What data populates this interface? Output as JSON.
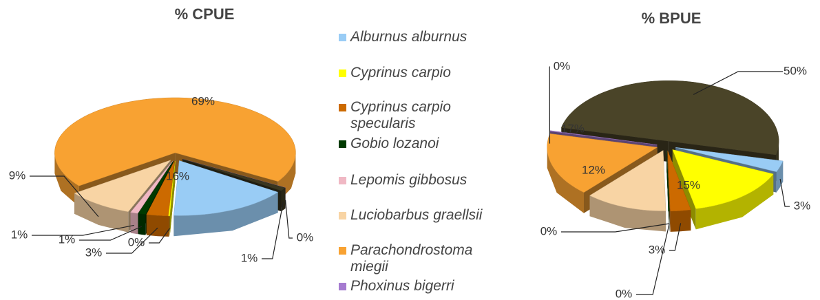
{
  "chart_data": [
    {
      "type": "pie3d",
      "title": "% CPUE",
      "categories": [
        "Alburnus alburnus",
        "Cyprinus carpio",
        "Cyprinus carpio specularis",
        "Gobio lozanoi",
        "Lepomis gibbosus",
        "Luciobarbus graellsii",
        "Parachondrostoma miegii",
        "Phoxinus bigerri",
        null
      ],
      "colors": [
        "#99ccf5",
        "#ffff00",
        "#cc6a00",
        "#003a00",
        "#f0b8c4",
        "#f8d4a4",
        "#f8a232",
        "#a57bd0",
        "#3a3620"
      ],
      "values": [
        16,
        0,
        3,
        1,
        1,
        9,
        69,
        0,
        1
      ],
      "value_labels": [
        "16%",
        "0%",
        "3%",
        "1%",
        "1%",
        "9%",
        "69%",
        "0%",
        "1%"
      ]
    },
    {
      "type": "pie3d",
      "title": "% BPUE",
      "categories": [
        "Alburnus alburnus",
        "Cyprinus carpio",
        "Cyprinus carpio specularis",
        "Gobio lozanoi",
        "Lepomis gibbosus",
        "Luciobarbus graellsii",
        "Parachondrostoma miegii",
        "Phoxinus bigerri",
        null
      ],
      "colors": [
        "#99ccf5",
        "#ffff00",
        "#cc6a00",
        "#003a00",
        "#f0b8c4",
        "#f8d4a4",
        "#f8a232",
        "#a57bd0",
        "#4a4428"
      ],
      "values": [
        3,
        15,
        3,
        0,
        0,
        12,
        17,
        0,
        50
      ],
      "value_labels": [
        "3%",
        "15%",
        "3%",
        "0%",
        "0%",
        "12%",
        "17%",
        "0%",
        "50%"
      ]
    }
  ]
}
